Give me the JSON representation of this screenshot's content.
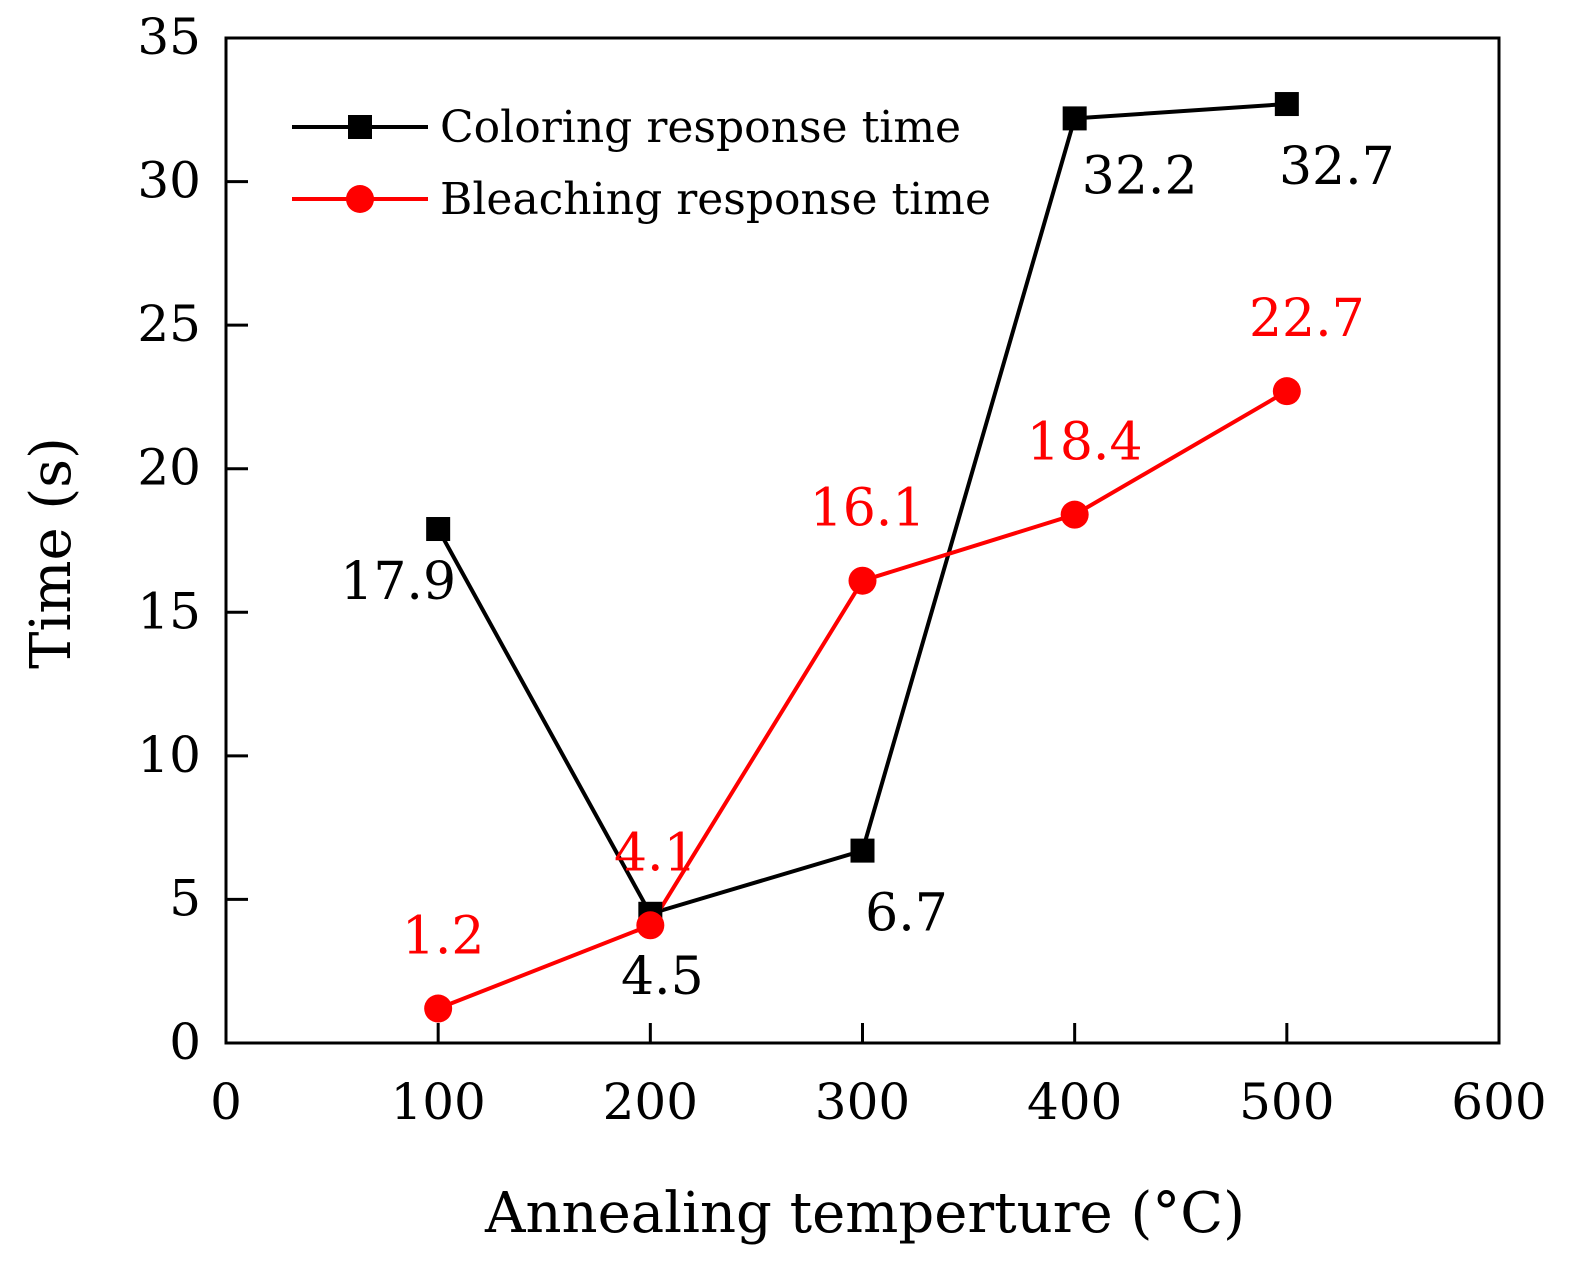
{
  "chart_data": {
    "type": "line",
    "title": "",
    "xlabel": "Annealing temperture (°C)",
    "ylabel": "Time (s)",
    "xlim": [
      0,
      600
    ],
    "ylim": [
      0,
      35
    ],
    "xticks": [
      "0",
      "100",
      "200",
      "300",
      "400",
      "500",
      "600"
    ],
    "yticks": [
      "0",
      "5",
      "10",
      "15",
      "20",
      "25",
      "30",
      "35"
    ],
    "grid": false,
    "legend_position": "top-left",
    "x": [
      100,
      200,
      300,
      400,
      500
    ],
    "series": [
      {
        "name": "Coloring response time",
        "marker": "square",
        "color": "#000000",
        "values": [
          17.9,
          4.5,
          6.7,
          32.2,
          32.7
        ],
        "labels": [
          "17.9",
          "4.5",
          "6.7",
          "32.2",
          "32.7"
        ]
      },
      {
        "name": "Bleaching response time",
        "marker": "circle",
        "color": "#ff0000",
        "values": [
          1.2,
          4.1,
          16.1,
          18.4,
          22.7
        ],
        "labels": [
          "1.2",
          "4.1",
          "16.1",
          "18.4",
          "22.7"
        ]
      }
    ]
  }
}
